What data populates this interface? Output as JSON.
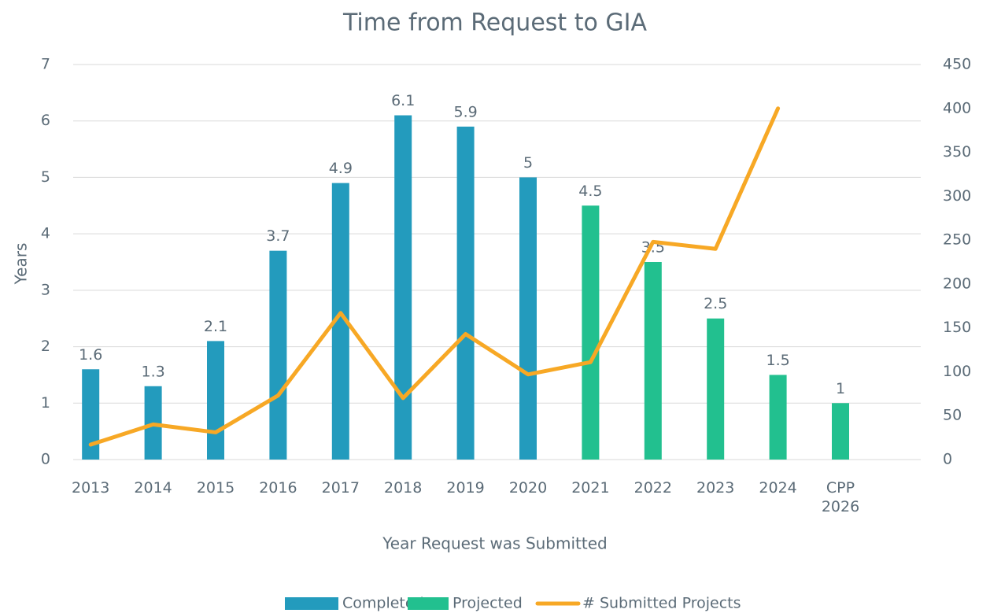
{
  "chart_data": {
    "type": "bar",
    "title": "Time from Request to GIA",
    "x_label": "Year Request was Submitted",
    "y_label": "Years",
    "categories": [
      "2013",
      "2014",
      "2015",
      "2016",
      "2017",
      "2018",
      "2019",
      "2020",
      "2021",
      "2022",
      "2023",
      "2024",
      "CPP 2026"
    ],
    "series": [
      {
        "name": "Completed",
        "type": "bar",
        "color": "#239bbd",
        "values": [
          1.6,
          1.3,
          2.1,
          3.7,
          4.9,
          6.1,
          5.9,
          5,
          null,
          null,
          null,
          null,
          null
        ]
      },
      {
        "name": "Projected",
        "type": "bar",
        "color": "#22c08f",
        "values": [
          null,
          null,
          null,
          null,
          null,
          null,
          null,
          null,
          4.5,
          3.5,
          2.5,
          1.5,
          1
        ]
      },
      {
        "name": "# Submitted Projects",
        "type": "line",
        "axis": "y2",
        "color": "#f7a825",
        "values": [
          17,
          40,
          31,
          73,
          167,
          70,
          143,
          97,
          111,
          248,
          240,
          400,
          null
        ]
      }
    ],
    "ylim": [
      0,
      7
    ],
    "yticks": [
      0,
      1,
      2,
      3,
      4,
      5,
      6,
      7
    ],
    "y2lim": [
      0,
      450
    ],
    "y2ticks": [
      0,
      50,
      100,
      150,
      200,
      250,
      300,
      350,
      400,
      450
    ],
    "grid": true,
    "legend": "bottom"
  }
}
